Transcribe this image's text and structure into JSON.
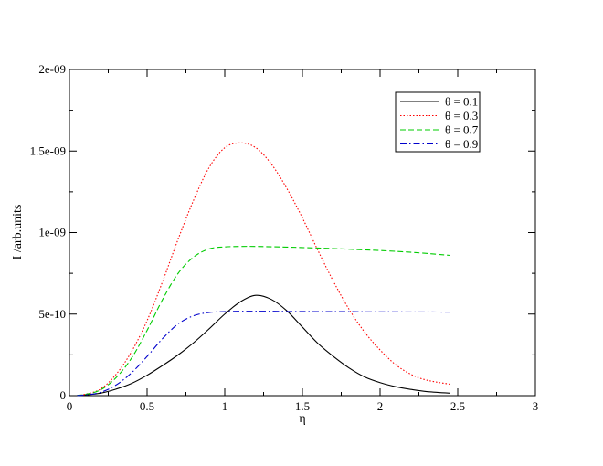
{
  "chart_data": {
    "type": "line",
    "title": "",
    "xlabel": "η",
    "ylabel": "I /arb.units",
    "xlim": [
      0,
      3
    ],
    "ylim": [
      0,
      2e-09
    ],
    "x_ticks": [
      {
        "value": 0,
        "label": "0"
      },
      {
        "value": 0.5,
        "label": "0.5"
      },
      {
        "value": 1,
        "label": "1"
      },
      {
        "value": 1.5,
        "label": "1.5"
      },
      {
        "value": 2,
        "label": "2"
      },
      {
        "value": 2.5,
        "label": "2.5"
      },
      {
        "value": 3,
        "label": "3"
      }
    ],
    "y_ticks": [
      {
        "value": 0,
        "label": "0"
      },
      {
        "value": 5e-10,
        "label": "5e-10"
      },
      {
        "value": 1e-09,
        "label": "1e-09"
      },
      {
        "value": 1.5e-09,
        "label": "1.5e-09"
      },
      {
        "value": 2e-09,
        "label": "2e-09"
      }
    ],
    "grid": false,
    "legend_position": "top-right",
    "series": [
      {
        "name": "θ = 0.1",
        "color": "#000000",
        "dash": "solid",
        "x": [
          0.05,
          0.1,
          0.2,
          0.3,
          0.4,
          0.5,
          0.6,
          0.7,
          0.8,
          0.9,
          1.0,
          1.1,
          1.2,
          1.3,
          1.4,
          1.5,
          1.6,
          1.7,
          1.8,
          1.9,
          2.0,
          2.1,
          2.2,
          2.3,
          2.45
        ],
        "y": [
          1e-12,
          4e-12,
          1.5e-11,
          4e-11,
          7.5e-11,
          1.25e-10,
          1.85e-10,
          2.5e-10,
          3.25e-10,
          4.1e-10,
          5e-10,
          5.75e-10,
          6.15e-10,
          5.9e-10,
          5.2e-10,
          4.2e-10,
          3.2e-10,
          2.4e-10,
          1.7e-10,
          1.15e-10,
          8e-11,
          5.5e-11,
          3.8e-11,
          2.5e-11,
          1.5e-11
        ]
      },
      {
        "name": "θ = 0.3",
        "color": "#ff0000",
        "dash": "dotted",
        "x": [
          0.05,
          0.1,
          0.2,
          0.3,
          0.4,
          0.5,
          0.6,
          0.7,
          0.8,
          0.9,
          1.0,
          1.1,
          1.2,
          1.3,
          1.4,
          1.5,
          1.6,
          1.7,
          1.8,
          1.9,
          2.0,
          2.1,
          2.2,
          2.3,
          2.45
        ],
        "y": [
          2e-12,
          8e-12,
          4e-11,
          1.3e-10,
          2.7e-10,
          4.6e-10,
          7e-10,
          9.6e-10,
          1.2e-09,
          1.4e-09,
          1.52e-09,
          1.55e-09,
          1.52e-09,
          1.42e-09,
          1.27e-09,
          1.09e-09,
          8.9e-10,
          7e-10,
          5.3e-10,
          3.9e-10,
          2.8e-10,
          1.9e-10,
          1.3e-10,
          9.5e-11,
          7e-11
        ]
      },
      {
        "name": "θ = 0.7",
        "color": "#00cc00",
        "dash": "dashed",
        "x": [
          0.05,
          0.1,
          0.2,
          0.3,
          0.4,
          0.5,
          0.6,
          0.7,
          0.8,
          0.9,
          1.0,
          1.1,
          1.2,
          1.3,
          1.4,
          1.5,
          1.6,
          1.7,
          1.8,
          1.9,
          2.0,
          2.1,
          2.2,
          2.3,
          2.45
        ],
        "y": [
          2e-12,
          7e-12,
          3.5e-11,
          1.1e-10,
          2.3e-10,
          4e-10,
          5.9e-10,
          7.5e-10,
          8.5e-10,
          9e-10,
          9.12e-10,
          9.15e-10,
          9.15e-10,
          9.13e-10,
          9.11e-10,
          9.08e-10,
          9.05e-10,
          9.02e-10,
          8.98e-10,
          8.94e-10,
          8.9e-10,
          8.85e-10,
          8.79e-10,
          8.72e-10,
          8.6e-10
        ]
      },
      {
        "name": "θ = 0.9",
        "color": "#0000cc",
        "dash": "dashdot",
        "x": [
          0.05,
          0.1,
          0.2,
          0.3,
          0.4,
          0.5,
          0.6,
          0.7,
          0.8,
          0.9,
          1.0,
          1.1,
          1.2,
          1.3,
          1.4,
          1.5,
          1.6,
          1.7,
          1.8,
          1.9,
          2.0,
          2.1,
          2.2,
          2.3,
          2.45
        ],
        "y": [
          1e-12,
          4e-12,
          2e-11,
          6.5e-11,
          1.4e-10,
          2.4e-10,
          3.5e-10,
          4.4e-10,
          4.9e-10,
          5.1e-10,
          5.15e-10,
          5.17e-10,
          5.17e-10,
          5.17e-10,
          5.16e-10,
          5.16e-10,
          5.15e-10,
          5.15e-10,
          5.15e-10,
          5.14e-10,
          5.14e-10,
          5.14e-10,
          5.13e-10,
          5.13e-10,
          5.12e-10
        ]
      }
    ]
  }
}
